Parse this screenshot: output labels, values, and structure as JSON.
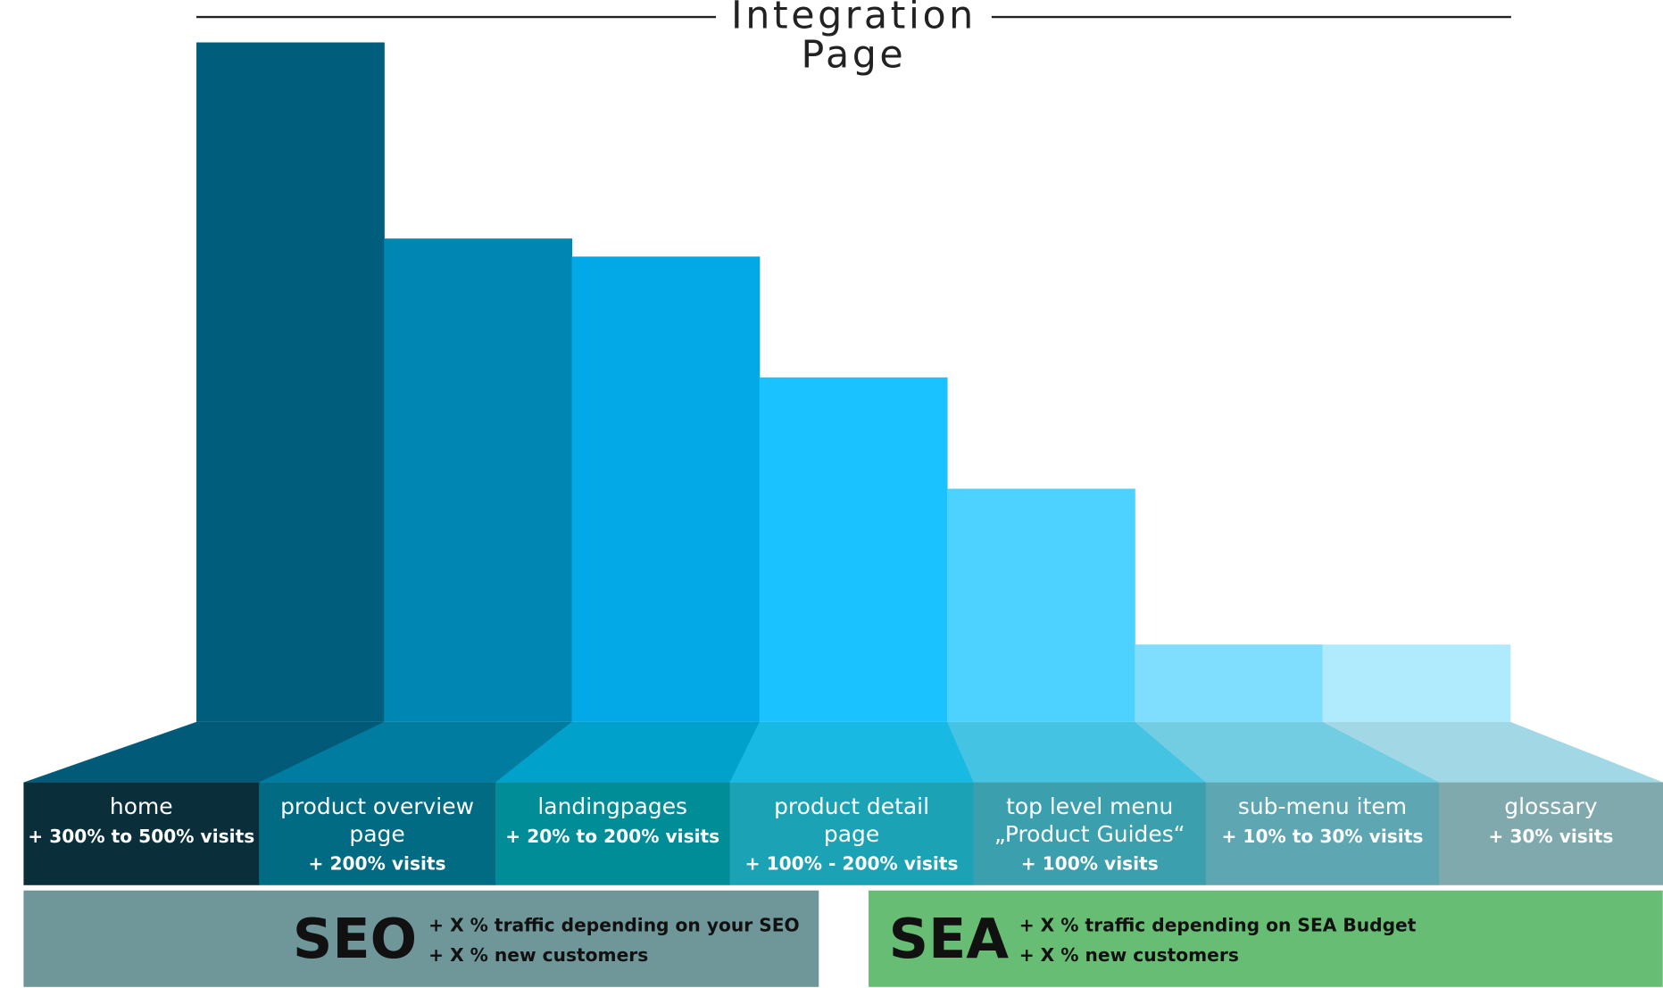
{
  "title": [
    "Integration",
    "Page"
  ],
  "columns": [
    {
      "label": [
        "home"
      ],
      "detail": "+ 300% to 500% visits"
    },
    {
      "label": [
        "product overview",
        "page"
      ],
      "detail": "+ 200% visits"
    },
    {
      "label": [
        "landingpages"
      ],
      "detail": "+ 20% to 200% visits"
    },
    {
      "label": [
        "product detail",
        "page"
      ],
      "detail": "+ 100% - 200% visits"
    },
    {
      "label": [
        "top level menu",
        "„Product Guides“"
      ],
      "detail": "+ 100% visits"
    },
    {
      "label": [
        "sub-menu item"
      ],
      "detail": "+ 10% to 30% visits"
    },
    {
      "label": [
        "glossary"
      ],
      "detail": "+ 30% visits"
    }
  ],
  "boxes": [
    {
      "heading": "SEO",
      "bullets": [
        "+ X % traffic depending on your SEO",
        "+ X % new customers"
      ]
    },
    {
      "heading": "SEA",
      "bullets": [
        "+ X % traffic depending on SEA Budget",
        "+ X % new customers"
      ]
    }
  ]
}
